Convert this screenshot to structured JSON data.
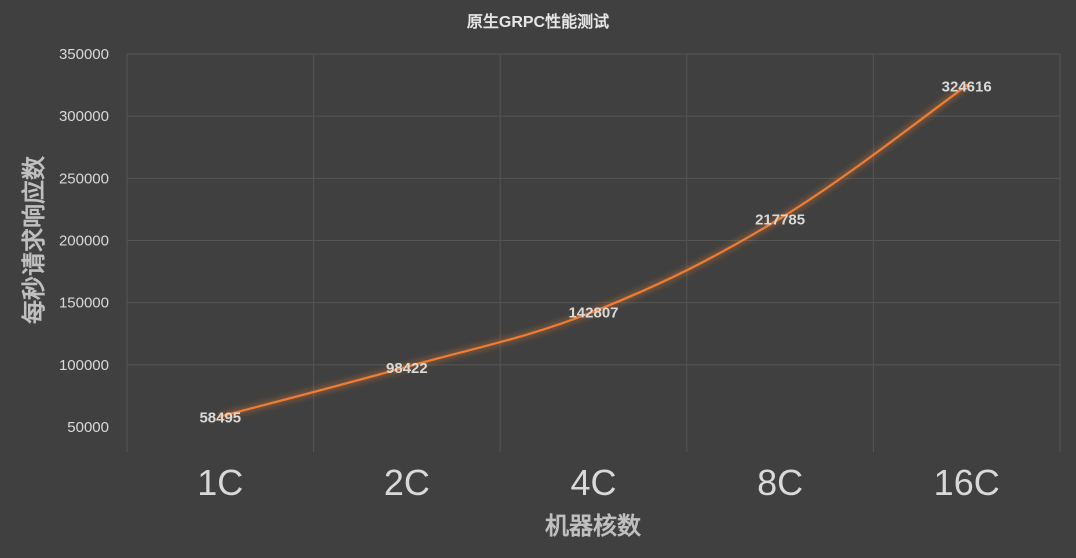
{
  "chart_data": {
    "type": "line",
    "title": "原生GRPC性能测试",
    "xlabel": "机器核数",
    "ylabel": "每秒请求响应数",
    "categories": [
      "1C",
      "2C",
      "4C",
      "8C",
      "16C"
    ],
    "series": [
      {
        "values": [
          58495,
          98422,
          142807,
          217785,
          324616
        ],
        "color": "#ed7d31"
      }
    ],
    "data_labels": [
      "58495",
      "98422",
      "142807",
      "217785",
      "324616"
    ],
    "y_ticks": [
      "50000",
      "100000",
      "150000",
      "200000",
      "250000",
      "300000",
      "350000"
    ],
    "ylim": [
      50000,
      350000
    ],
    "grid": true,
    "legend": "none",
    "colors": {
      "background": "#404040",
      "grid": "#555555",
      "line": "#ed7d31",
      "text": "#d9d9d9"
    }
  }
}
